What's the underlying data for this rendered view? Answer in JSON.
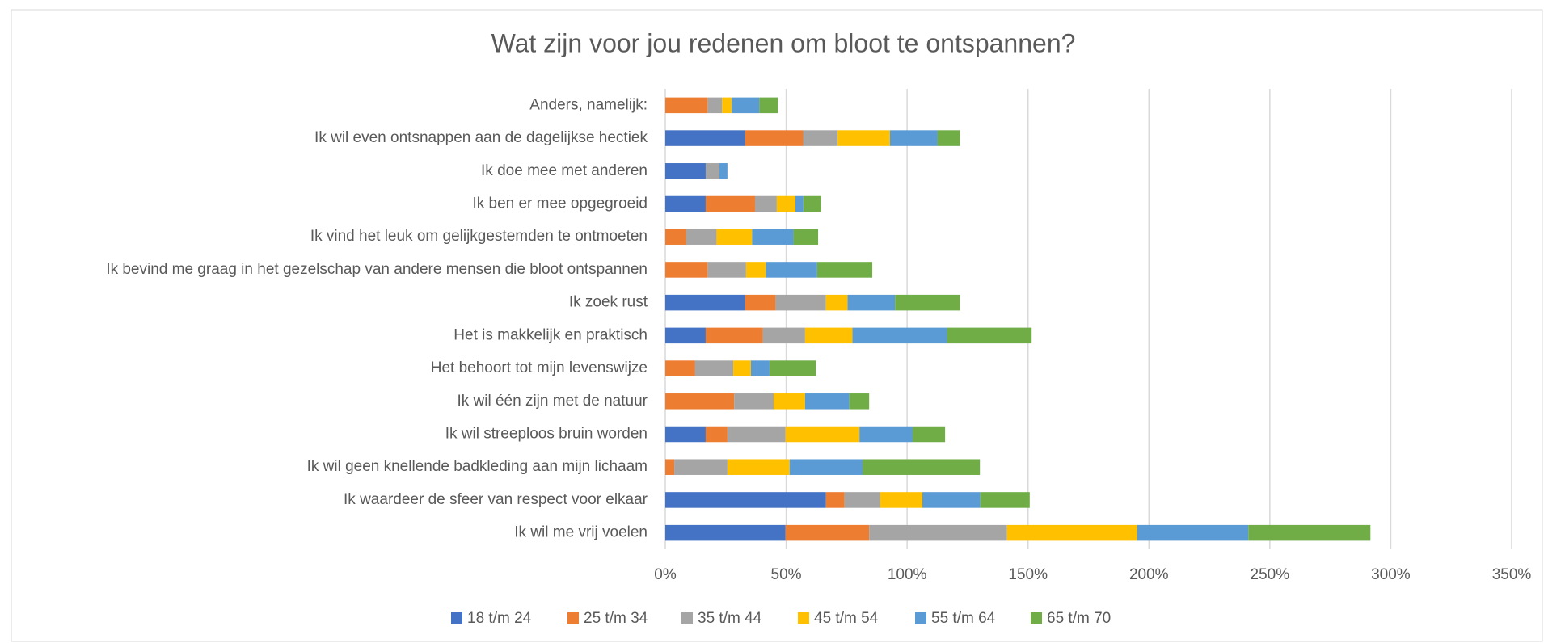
{
  "chart_data": {
    "type": "stacked_barh",
    "title": "Wat zijn voor jou redenen om bloot te ontspannen?",
    "categories": [
      "Anders, namelijk:",
      "Ik wil even ontsnappen aan de dagelijkse hectiek",
      "Ik doe mee met anderen",
      "Ik ben er mee opgegroeid",
      "Ik vind het leuk om gelijkgestemden te ontmoeten",
      "Ik bevind me graag in het gezelschap van andere mensen die bloot ontspannen",
      "Ik zoek rust",
      "Het is makkelijk en praktisch",
      "Het behoort tot mijn levenswijze",
      "Ik wil één zijn met de natuur",
      "Ik wil streeploos bruin worden",
      "Ik wil geen knellende badkleding aan mijn lichaam",
      "Ik waardeer de sfeer van respect voor elkaar",
      "Ik wil me vrij voelen"
    ],
    "series": [
      {
        "name": "18 t/m 24",
        "color": "#4472c4",
        "values": [
          0,
          33,
          16.7,
          16.7,
          0,
          0,
          33,
          16.7,
          0,
          0,
          16.7,
          0,
          66.4,
          49.7
        ]
      },
      {
        "name": "25 t/m 34",
        "color": "#ed7d31",
        "values": [
          17.5,
          24,
          0,
          20.4,
          8.6,
          17.5,
          12.6,
          23.6,
          12.2,
          28.5,
          9,
          3.7,
          7.7,
          34.6
        ]
      },
      {
        "name": "35 t/m 44",
        "color": "#a5a5a5",
        "values": [
          6,
          14.3,
          5.7,
          9,
          12.6,
          15.9,
          20.8,
          17.5,
          15.9,
          16.3,
          24,
          22,
          14.7,
          57
        ]
      },
      {
        "name": "45 t/m 54",
        "color": "#ffc000",
        "values": [
          4,
          21.6,
          0,
          7.7,
          14.7,
          8.2,
          9,
          19.6,
          7.3,
          13,
          30.6,
          25.7,
          17.5,
          53.8
        ]
      },
      {
        "name": "55 t/m 64",
        "color": "#5b9bd5",
        "values": [
          11.4,
          19.6,
          3.3,
          3.3,
          17.1,
          21.2,
          19.6,
          39.1,
          7.7,
          18.3,
          22,
          30.2,
          24,
          46
        ]
      },
      {
        "name": "65 t/m 70",
        "color": "#70ad47",
        "values": [
          7.7,
          9.4,
          0,
          7.3,
          10.2,
          22.8,
          26.9,
          35,
          19.2,
          8.2,
          13.4,
          48.5,
          20.4,
          50.5
        ]
      }
    ],
    "xlim": [
      0,
      350
    ],
    "xticks": [
      {
        "value": 0,
        "label": "0%"
      },
      {
        "value": 50,
        "label": "50%"
      },
      {
        "value": 100,
        "label": "100%"
      },
      {
        "value": 150,
        "label": "150%"
      },
      {
        "value": 200,
        "label": "200%"
      },
      {
        "value": 250,
        "label": "250%"
      },
      {
        "value": 300,
        "label": "300%"
      },
      {
        "value": 350,
        "label": "350%"
      }
    ],
    "grid": true,
    "legend": "bottom"
  }
}
